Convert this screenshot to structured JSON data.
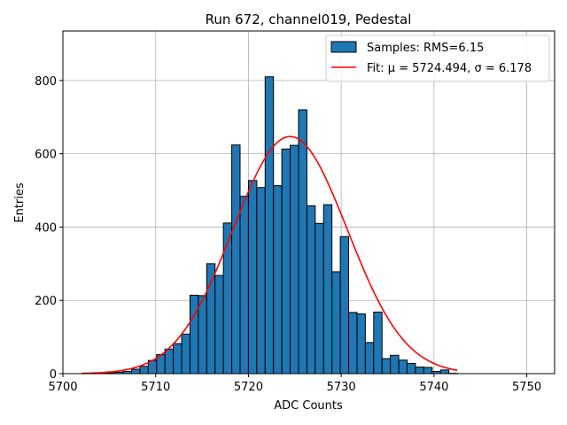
{
  "chart_data": {
    "type": "bar",
    "title": "Run 672, channel019, Pedestal",
    "xlabel": "ADC Counts",
    "ylabel": "Entries",
    "xlim": [
      5700,
      5753
    ],
    "ylim": [
      0,
      935
    ],
    "xticks": [
      5700,
      5710,
      5720,
      5730,
      5740,
      5750
    ],
    "yticks": [
      0,
      200,
      400,
      600,
      800
    ],
    "grid": true,
    "legend_position": "top-right",
    "bins": {
      "start": 5702,
      "width": 0.9,
      "counts": [
        0,
        1,
        1,
        2,
        4,
        6,
        12,
        20,
        36,
        52,
        67,
        82,
        108,
        214,
        213,
        300,
        268,
        411,
        624,
        484,
        527,
        508,
        810,
        513,
        613,
        623,
        720,
        458,
        410,
        461,
        278,
        374,
        167,
        163,
        85,
        168,
        41,
        50,
        37,
        28,
        18,
        17,
        6,
        10,
        1
      ]
    },
    "fit": {
      "mu": 5724.494,
      "sigma": 6.178,
      "peak": 647
    },
    "legend": [
      {
        "label": "Samples: RMS=6.15",
        "color": "#1f77b4",
        "kind": "patch"
      },
      {
        "label": "Fit: μ = 5724.494, σ = 6.178",
        "color": "#ff0000",
        "kind": "line"
      }
    ],
    "colors": {
      "bar_fill": "#1f77b4",
      "bar_edge": "#000000",
      "fit_line": "#ff0000",
      "grid": "#b0b0b0"
    }
  }
}
